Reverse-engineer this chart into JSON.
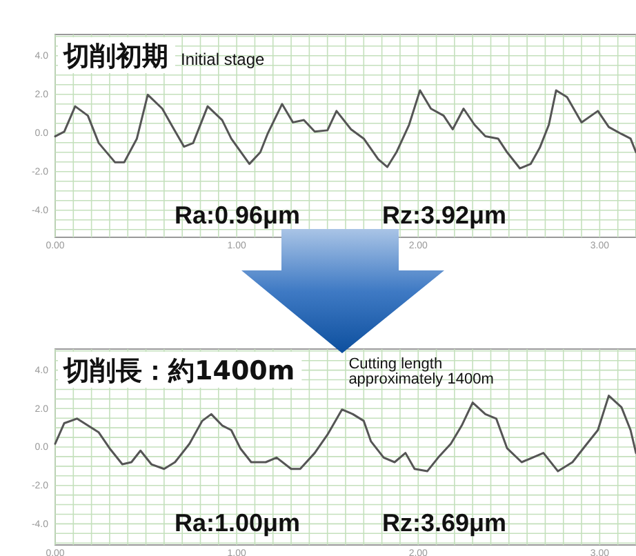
{
  "chart_data": [
    {
      "type": "line",
      "title": "切削初期",
      "subtitle": "Initial stage",
      "annotations": [
        "Ra:0.96μm",
        "Rz:3.92μm"
      ],
      "color": "#555555",
      "grid": true,
      "xlim": [
        0,
        3.2
      ],
      "ylim": [
        -5.4,
        5.1
      ],
      "xticks": [
        {
          "value": 0,
          "label": "0.00"
        },
        {
          "value": 1,
          "label": "1.00"
        },
        {
          "value": 2,
          "label": "2.00"
        },
        {
          "value": 3,
          "label": "3.00"
        }
      ],
      "yticks": [
        {
          "value": 4,
          "label": "4.0"
        },
        {
          "value": 2,
          "label": "2.0"
        },
        {
          "value": 0,
          "label": "0.0"
        },
        {
          "value": -2,
          "label": "-2.0"
        },
        {
          "value": -4,
          "label": "-4.0"
        }
      ],
      "x": [
        0,
        0.05,
        0.11,
        0.18,
        0.24,
        0.33,
        0.38,
        0.45,
        0.51,
        0.59,
        0.64,
        0.71,
        0.76,
        0.84,
        0.92,
        0.97,
        1.07,
        1.13,
        1.17,
        1.25,
        1.31,
        1.37,
        1.43,
        1.5,
        1.55,
        1.63,
        1.7,
        1.78,
        1.83,
        1.88,
        1.95,
        2.01,
        2.07,
        2.14,
        2.19,
        2.25,
        2.31,
        2.37,
        2.44,
        2.49,
        2.56,
        2.62,
        2.67,
        2.72,
        2.76,
        2.82,
        2.9,
        2.99,
        3.05,
        3.12,
        3.17,
        3.2
      ],
      "values": [
        -0.17,
        0.07,
        1.38,
        0.9,
        -0.52,
        -1.52,
        -1.52,
        -0.29,
        1.98,
        1.26,
        0.43,
        -0.71,
        -0.52,
        1.38,
        0.67,
        -0.29,
        -1.6,
        -1.0,
        -0.05,
        1.5,
        0.55,
        0.67,
        0.07,
        0.14,
        1.14,
        0.19,
        -0.29,
        -1.36,
        -1.76,
        -1.0,
        0.43,
        2.21,
        1.26,
        0.9,
        0.19,
        1.26,
        0.43,
        -0.17,
        -0.29,
        -1.0,
        -1.83,
        -1.6,
        -0.76,
        0.43,
        2.21,
        1.86,
        0.55,
        1.14,
        0.31,
        -0.05,
        -0.29,
        -1.0
      ]
    },
    {
      "type": "line",
      "title": "切削長：約1400m",
      "subtitle": "Cutting length approximately 1400m",
      "annotations": [
        "Ra:1.00μm",
        "Rz:3.69μm"
      ],
      "color": "#555555",
      "grid": true,
      "xlim": [
        0,
        3.2
      ],
      "ylim": [
        -5.1,
        5.1
      ],
      "xticks": [
        {
          "value": 0,
          "label": "0.00"
        },
        {
          "value": 1,
          "label": "1.00"
        },
        {
          "value": 2,
          "label": "2.00"
        },
        {
          "value": 3,
          "label": "3.00"
        }
      ],
      "yticks": [
        {
          "value": 4,
          "label": "4.0"
        },
        {
          "value": 2,
          "label": "2.0"
        },
        {
          "value": 0,
          "label": "0.0"
        },
        {
          "value": -2,
          "label": "-2.0"
        },
        {
          "value": -4,
          "label": "-4.0"
        }
      ],
      "x": [
        0,
        0.05,
        0.12,
        0.18,
        0.24,
        0.3,
        0.37,
        0.42,
        0.47,
        0.53,
        0.6,
        0.66,
        0.74,
        0.81,
        0.86,
        0.92,
        0.97,
        1.02,
        1.08,
        1.16,
        1.22,
        1.3,
        1.35,
        1.43,
        1.5,
        1.58,
        1.64,
        1.7,
        1.74,
        1.81,
        1.87,
        1.93,
        1.98,
        2.05,
        2.11,
        2.18,
        2.24,
        2.3,
        2.37,
        2.43,
        2.49,
        2.57,
        2.63,
        2.69,
        2.77,
        2.85,
        2.93,
        2.99,
        3.05,
        3.12,
        3.17,
        3.2
      ],
      "values": [
        0.17,
        1.24,
        1.48,
        1.12,
        0.76,
        -0.07,
        -0.9,
        -0.79,
        -0.19,
        -0.9,
        -1.14,
        -0.79,
        0.17,
        1.36,
        1.71,
        1.12,
        0.88,
        -0.07,
        -0.79,
        -0.79,
        -0.55,
        -1.14,
        -1.14,
        -0.31,
        0.64,
        1.95,
        1.71,
        1.36,
        0.29,
        -0.55,
        -0.79,
        -0.31,
        -1.14,
        -1.26,
        -0.55,
        0.17,
        1.12,
        2.31,
        1.71,
        1.48,
        -0.07,
        -0.79,
        -0.55,
        -0.31,
        -1.26,
        -0.79,
        0.17,
        0.88,
        2.67,
        2.07,
        0.88,
        -0.31
      ]
    }
  ]
}
